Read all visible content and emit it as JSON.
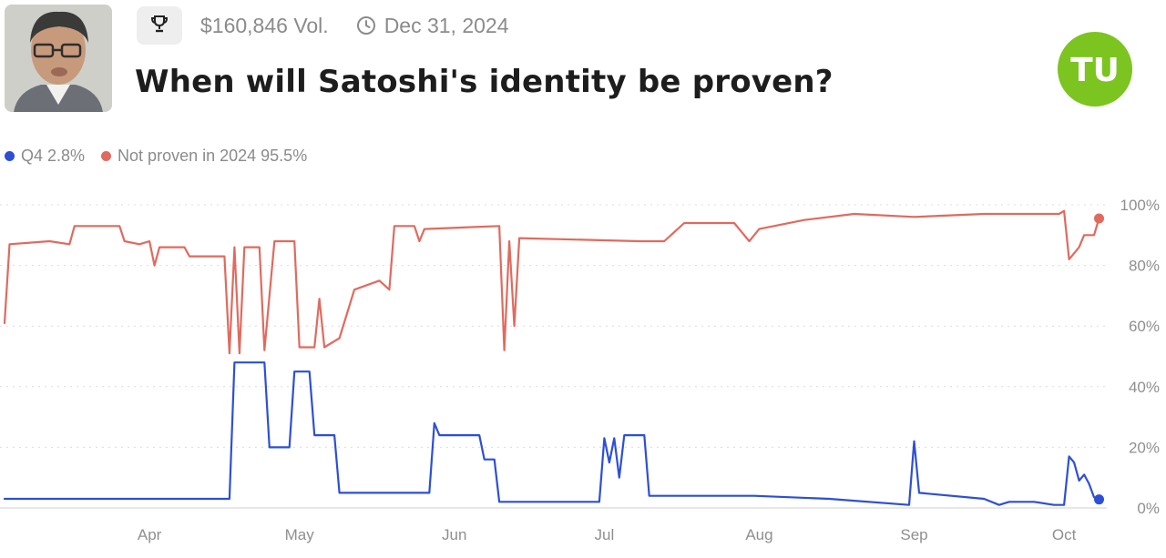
{
  "header": {
    "volume": "$160,846 Vol.",
    "end_date": "Dec 31, 2024",
    "title": "When will Satoshi's identity be proven?",
    "logo_text": "TU",
    "trophy_icon": "trophy-icon",
    "clock_icon": "clock-icon"
  },
  "legend": [
    {
      "name": "Q4",
      "value": "2.8%",
      "color": "#2d4fd6"
    },
    {
      "name": "Not proven in 2024",
      "value": "95.5%",
      "color": "#e06a5e"
    }
  ],
  "colors": {
    "brand": "#7cc41f",
    "grid": "#dcdcdc",
    "muted_text": "#8b8b8b"
  },
  "chart_data": {
    "type": "line",
    "x_axis_type": "date",
    "x_ticks": [
      {
        "label": "Apr",
        "date": "2024-04-01"
      },
      {
        "label": "May",
        "date": "2024-05-01"
      },
      {
        "label": "Jun",
        "date": "2024-06-01"
      },
      {
        "label": "Jul",
        "date": "2024-07-01"
      },
      {
        "label": "Aug",
        "date": "2024-08-01"
      },
      {
        "label": "Sep",
        "date": "2024-09-01"
      },
      {
        "label": "Oct",
        "date": "2024-10-01"
      }
    ],
    "y_ticks": [
      "0%",
      "20%",
      "40%",
      "60%",
      "80%",
      "100%"
    ],
    "ylim": [
      0,
      100
    ],
    "xlim": [
      "2024-03-03",
      "2024-10-09"
    ],
    "grid": true,
    "legend_position": "top-left",
    "series": [
      {
        "name": "Q4",
        "color": "#2d4fd6",
        "points": [
          [
            "2024-03-03",
            3
          ],
          [
            "2024-03-25",
            3
          ],
          [
            "2024-04-17",
            3
          ],
          [
            "2024-04-18",
            48
          ],
          [
            "2024-04-24",
            48
          ],
          [
            "2024-04-25",
            20
          ],
          [
            "2024-04-29",
            20
          ],
          [
            "2024-04-30",
            45
          ],
          [
            "2024-05-03",
            45
          ],
          [
            "2024-05-04",
            24
          ],
          [
            "2024-05-08",
            24
          ],
          [
            "2024-05-09",
            5
          ],
          [
            "2024-05-27",
            5
          ],
          [
            "2024-05-28",
            28
          ],
          [
            "2024-05-29",
            24
          ],
          [
            "2024-06-06",
            24
          ],
          [
            "2024-06-07",
            16
          ],
          [
            "2024-06-09",
            16
          ],
          [
            "2024-06-10",
            2
          ],
          [
            "2024-06-30",
            2
          ],
          [
            "2024-07-01",
            23
          ],
          [
            "2024-07-02",
            15
          ],
          [
            "2024-07-03",
            23
          ],
          [
            "2024-07-04",
            10
          ],
          [
            "2024-07-05",
            24
          ],
          [
            "2024-07-09",
            24
          ],
          [
            "2024-07-10",
            4
          ],
          [
            "2024-07-31",
            4
          ],
          [
            "2024-08-15",
            3
          ],
          [
            "2024-08-31",
            1
          ],
          [
            "2024-09-01",
            22
          ],
          [
            "2024-09-02",
            5
          ],
          [
            "2024-09-15",
            3
          ],
          [
            "2024-09-18",
            1
          ],
          [
            "2024-09-20",
            2
          ],
          [
            "2024-09-25",
            2
          ],
          [
            "2024-09-29",
            1
          ],
          [
            "2024-10-01",
            1
          ],
          [
            "2024-10-02",
            17
          ],
          [
            "2024-10-03",
            15
          ],
          [
            "2024-10-04",
            9
          ],
          [
            "2024-10-05",
            11
          ],
          [
            "2024-10-06",
            8
          ],
          [
            "2024-10-07",
            3.5
          ],
          [
            "2024-10-08",
            2.8
          ]
        ]
      },
      {
        "name": "Not proven in 2024",
        "color": "#e06a5e",
        "points": [
          [
            "2024-03-03",
            61
          ],
          [
            "2024-03-04",
            87
          ],
          [
            "2024-03-12",
            88
          ],
          [
            "2024-03-16",
            87
          ],
          [
            "2024-03-17",
            93
          ],
          [
            "2024-03-26",
            93
          ],
          [
            "2024-03-27",
            88
          ],
          [
            "2024-03-30",
            87
          ],
          [
            "2024-04-01",
            88
          ],
          [
            "2024-04-02",
            80
          ],
          [
            "2024-04-03",
            86
          ],
          [
            "2024-04-08",
            86
          ],
          [
            "2024-04-09",
            83
          ],
          [
            "2024-04-16",
            83
          ],
          [
            "2024-04-17",
            51
          ],
          [
            "2024-04-18",
            86
          ],
          [
            "2024-04-19",
            51
          ],
          [
            "2024-04-20",
            86
          ],
          [
            "2024-04-23",
            86
          ],
          [
            "2024-04-24",
            52
          ],
          [
            "2024-04-26",
            88
          ],
          [
            "2024-04-30",
            88
          ],
          [
            "2024-05-01",
            53
          ],
          [
            "2024-05-04",
            53
          ],
          [
            "2024-05-05",
            69
          ],
          [
            "2024-05-06",
            53
          ],
          [
            "2024-05-09",
            56
          ],
          [
            "2024-05-12",
            72
          ],
          [
            "2024-05-17",
            75
          ],
          [
            "2024-05-19",
            72
          ],
          [
            "2024-05-20",
            93
          ],
          [
            "2024-05-24",
            93
          ],
          [
            "2024-05-25",
            88
          ],
          [
            "2024-05-26",
            92
          ],
          [
            "2024-06-10",
            93
          ],
          [
            "2024-06-11",
            52
          ],
          [
            "2024-06-12",
            88
          ],
          [
            "2024-06-13",
            60
          ],
          [
            "2024-06-14",
            89
          ],
          [
            "2024-07-08",
            88
          ],
          [
            "2024-07-13",
            88
          ],
          [
            "2024-07-17",
            94
          ],
          [
            "2024-07-27",
            94
          ],
          [
            "2024-07-30",
            88
          ],
          [
            "2024-08-01",
            92
          ],
          [
            "2024-08-10",
            95
          ],
          [
            "2024-08-20",
            97
          ],
          [
            "2024-09-01",
            96
          ],
          [
            "2024-09-15",
            97
          ],
          [
            "2024-09-30",
            97
          ],
          [
            "2024-10-01",
            98
          ],
          [
            "2024-10-02",
            82
          ],
          [
            "2024-10-04",
            86
          ],
          [
            "2024-10-05",
            90
          ],
          [
            "2024-10-07",
            90
          ],
          [
            "2024-10-08",
            95.5
          ]
        ]
      }
    ]
  }
}
